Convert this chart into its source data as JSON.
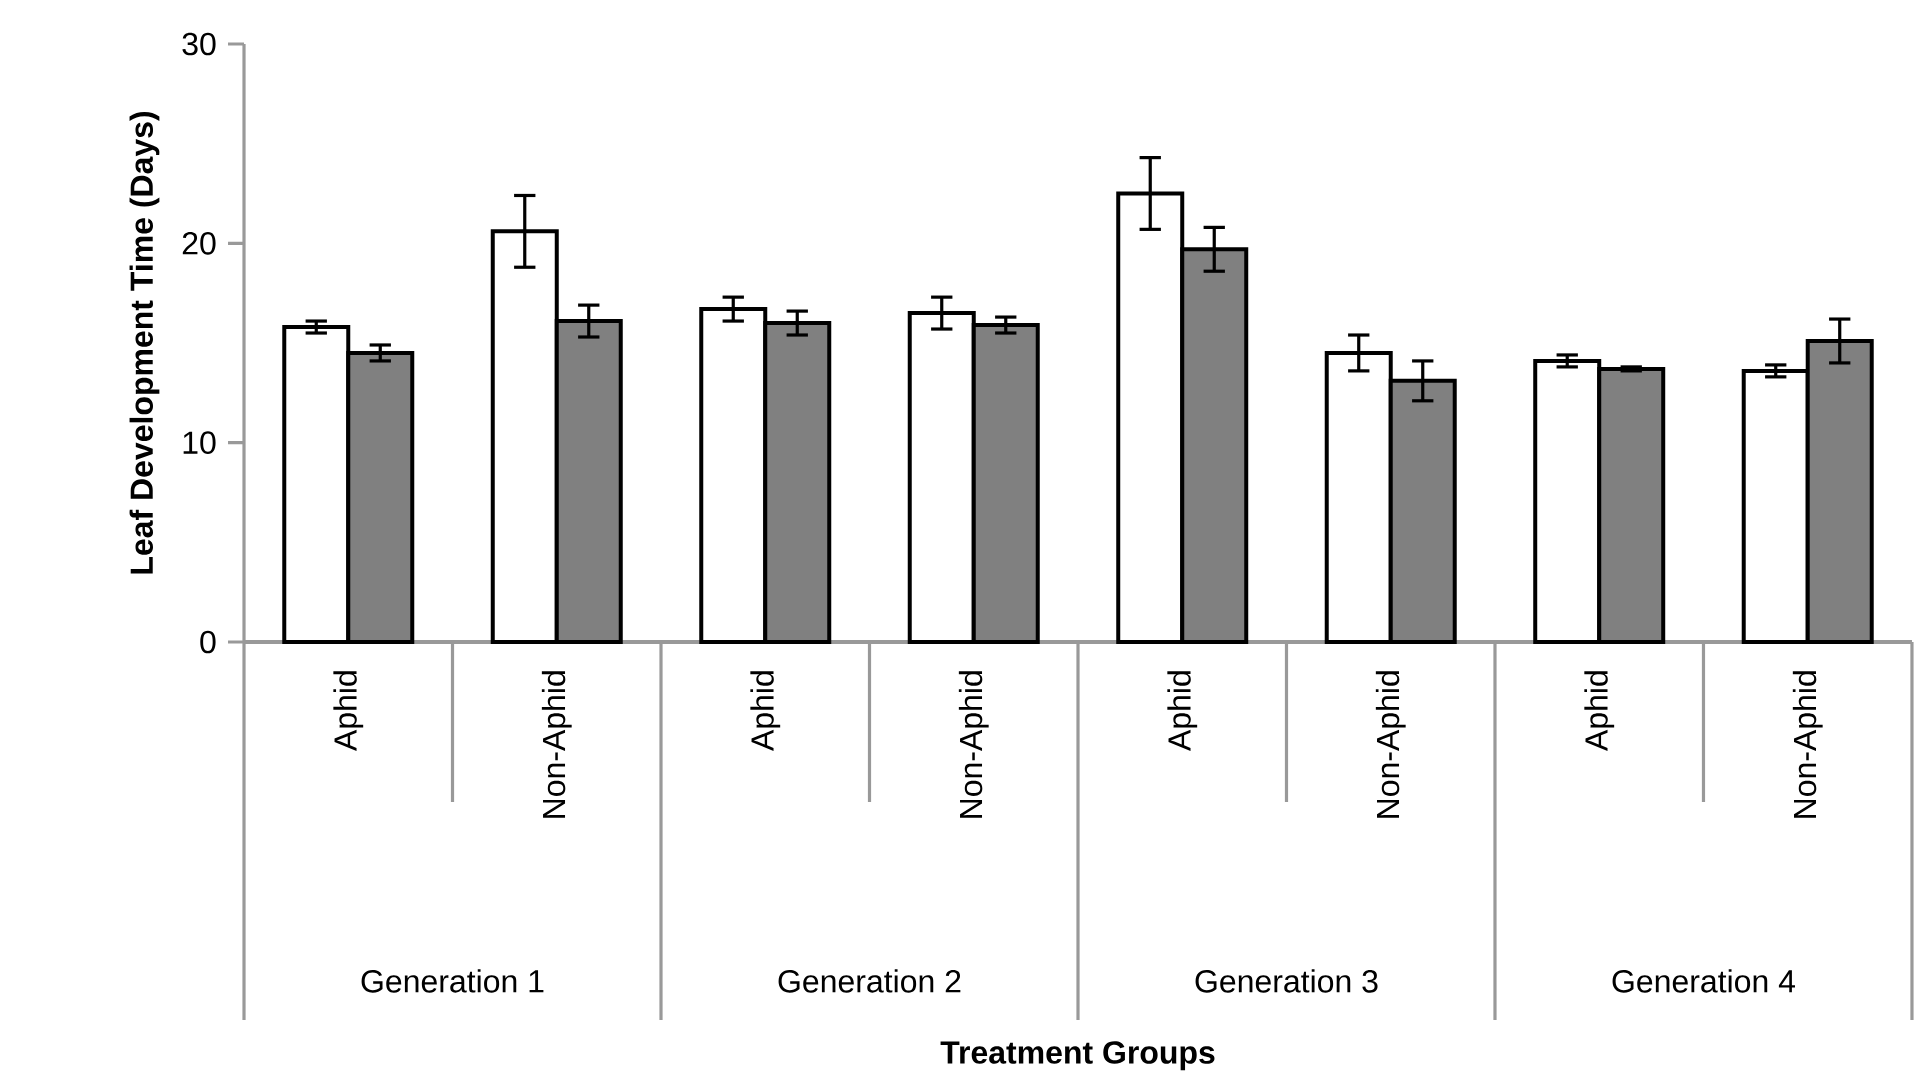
{
  "chart_data": {
    "type": "bar",
    "ylabel": "Leaf Development Time (Days)",
    "categories": [
      "Aphid",
      "Non-Aphid",
      "Aphid",
      "Non-Aphid",
      "Aphid",
      "Non-Aphid",
      "Aphid",
      "Non-Aphid"
    ],
    "annotations": [
      "Generation 1",
      "Generation 2",
      "Generation 3",
      "Generation 4",
      "Treatment Groups"
    ],
    "series": [
      {
        "color": "#ffffff",
        "values": [
          15.8,
          20.6,
          16.7,
          16.5,
          22.5,
          14.5,
          14.1,
          13.6
        ],
        "errors": [
          0.3,
          1.8,
          0.6,
          0.8,
          1.8,
          0.9,
          0.3,
          0.3
        ]
      },
      {
        "color": "#808080",
        "values": [
          14.5,
          16.1,
          16.0,
          15.9,
          19.7,
          13.1,
          13.7,
          15.1
        ],
        "errors": [
          0.4,
          0.8,
          0.6,
          0.4,
          1.1,
          1.0,
          0.1,
          1.1
        ]
      }
    ],
    "ylim": [
      0,
      30
    ],
    "yticks": [
      0,
      10,
      20,
      30
    ]
  }
}
